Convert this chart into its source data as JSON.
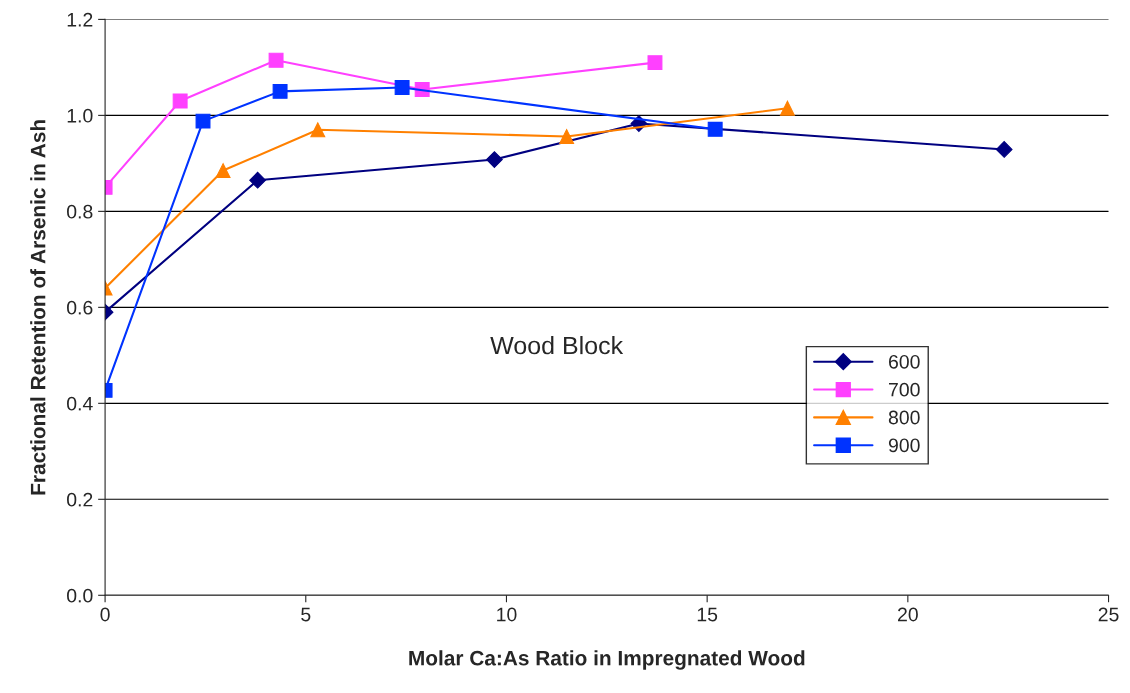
{
  "chart_data": {
    "type": "line",
    "xlabel": "Molar Ca:As Ratio in Impregnated Wood",
    "ylabel": "Fractional Retention of Arsenic in Ash",
    "annotations": [
      "Wood Block"
    ],
    "series": [
      {
        "name": "600",
        "color": "#000080",
        "marker": "diamond",
        "x": [
          0,
          3.8,
          9.7,
          13.3,
          22.4
        ],
        "values": [
          0.59,
          0.865,
          0.908,
          0.983,
          0.929
        ]
      },
      {
        "name": "700",
        "color": "#ff40ff",
        "marker": "square",
        "x": [
          0,
          1.87,
          4.26,
          7.9,
          13.7
        ],
        "values": [
          0.85,
          1.03,
          1.115,
          1.054,
          1.11
        ]
      },
      {
        "name": "800",
        "color": "#ff8000",
        "marker": "triangle",
        "x": [
          0,
          2.94,
          5.3,
          11.5,
          17.0
        ],
        "values": [
          0.64,
          0.885,
          0.97,
          0.956,
          1.015
        ]
      },
      {
        "name": "900",
        "color": "#0033ff",
        "marker": "square",
        "x": [
          0,
          2.44,
          4.36,
          7.4,
          15.2
        ],
        "values": [
          0.427,
          0.988,
          1.05,
          1.058,
          0.971
        ]
      }
    ],
    "xlim": [
      0,
      25
    ],
    "xticks": [
      0,
      5,
      10,
      15,
      20,
      25
    ],
    "ylim": [
      0,
      1.2
    ],
    "yticks": [
      {
        "value": 0,
        "label": "0.0"
      },
      {
        "value": 0.2,
        "label": "0.2"
      },
      {
        "value": 0.4,
        "label": "0.4"
      },
      {
        "value": 0.6,
        "label": "0.6"
      },
      {
        "value": 0.8,
        "label": "0.8"
      },
      {
        "value": 1.0,
        "label": "1.0"
      },
      {
        "value": 1.2,
        "label": "1.2"
      }
    ],
    "grid": "y",
    "legend": "right",
    "line_style": "solid"
  }
}
